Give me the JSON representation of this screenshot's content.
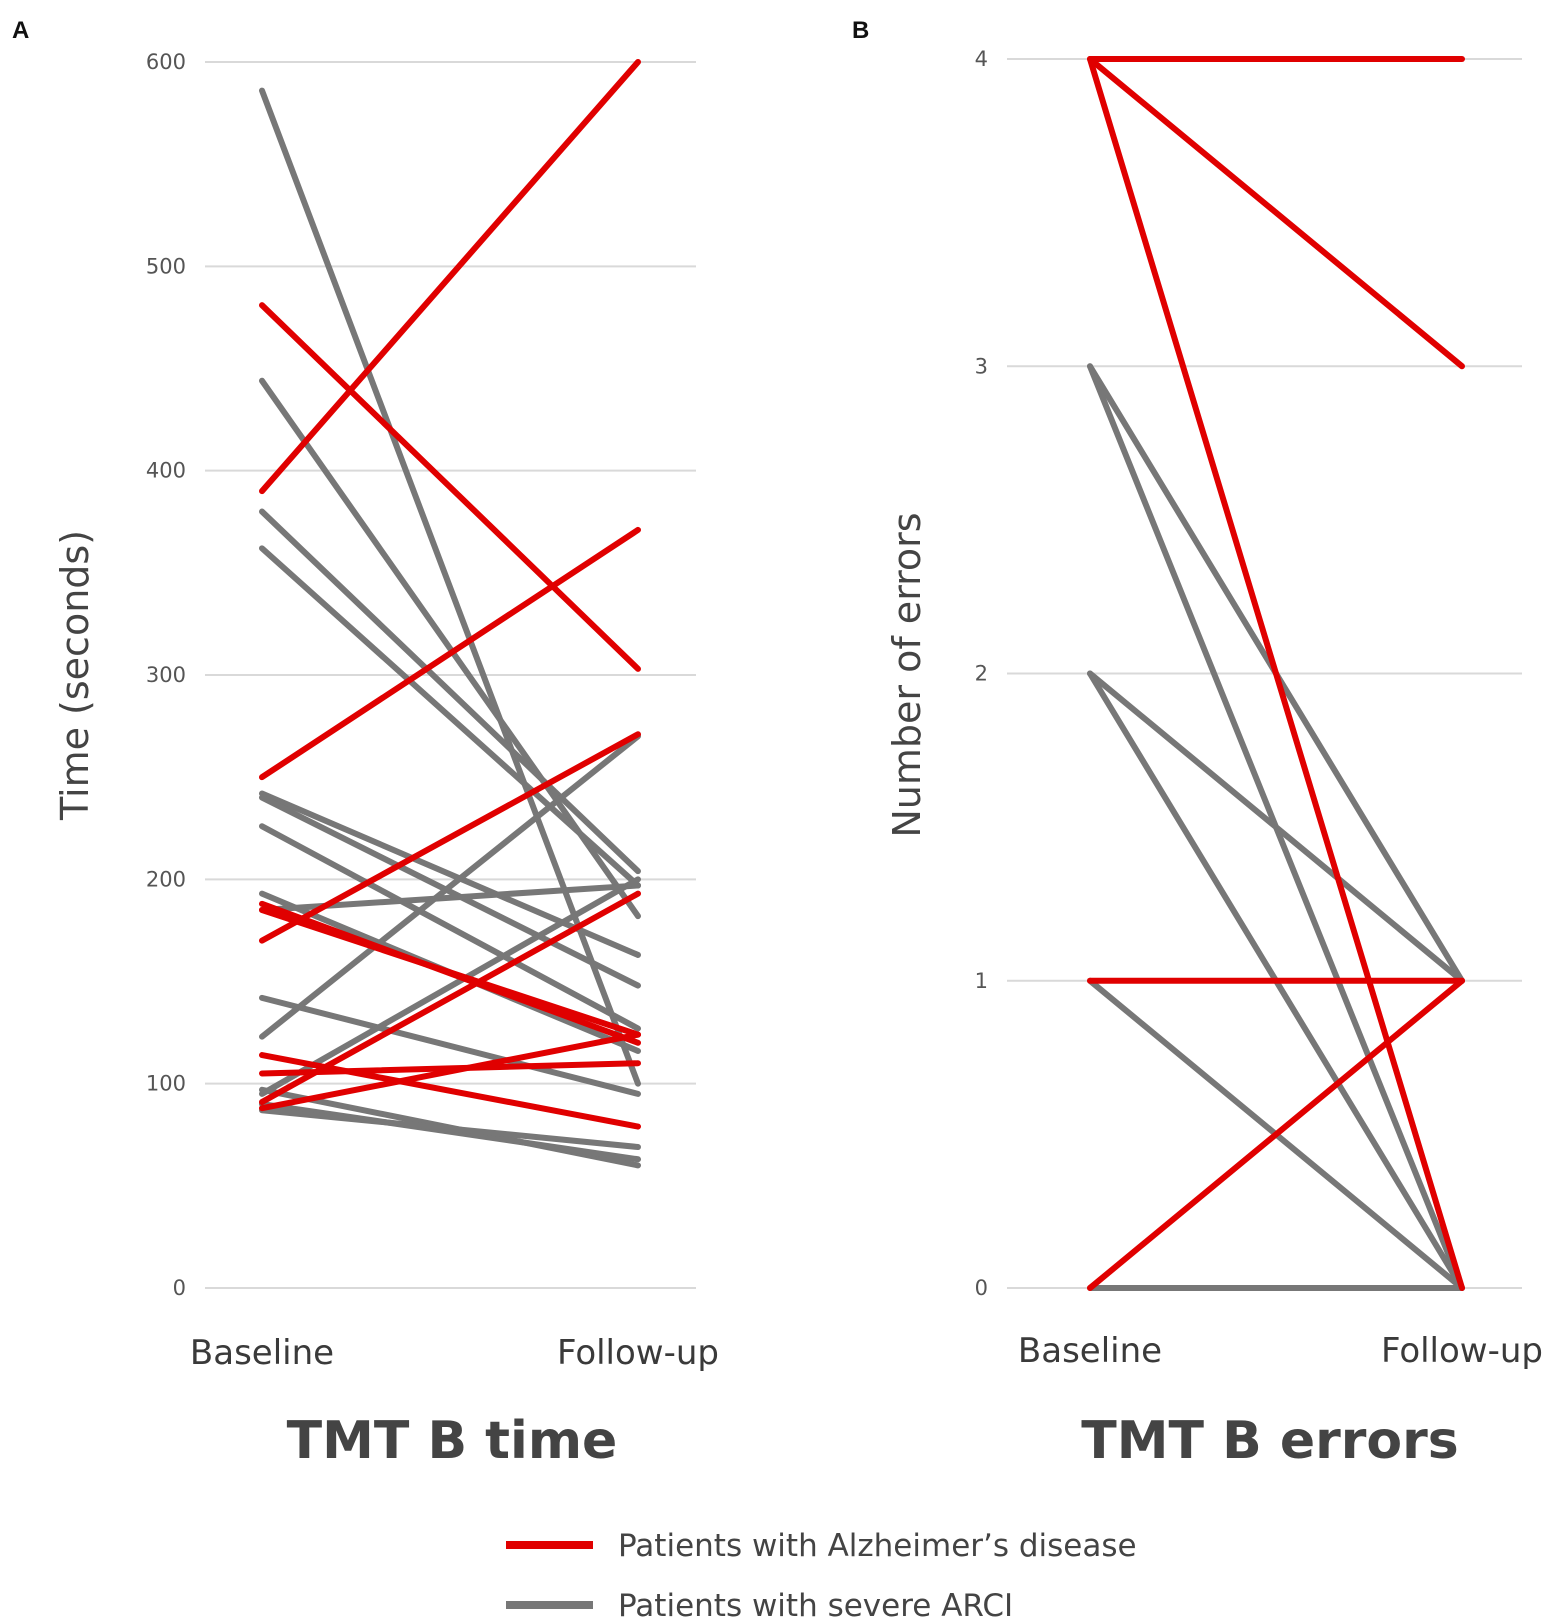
{
  "colors": {
    "alzheimers": "#e00000",
    "arci": "#777777",
    "grid": "#d9d9d9"
  },
  "legend": [
    {
      "label": "Patients with Alzheimer’s disease",
      "color": "#e00000"
    },
    {
      "label": "Patients with severe ARCI",
      "color": "#777777"
    }
  ],
  "chart_data": [
    {
      "panel": "A",
      "type": "line",
      "title": "TMT B time",
      "ylabel": "Time (seconds)",
      "categories": [
        "Baseline",
        "Follow-up"
      ],
      "ylim": [
        0,
        600
      ],
      "yticks": [
        "0",
        "100",
        "200",
        "300",
        "400",
        "500",
        "600"
      ],
      "grid": true,
      "series": [
        {
          "group": "arci",
          "values": [
            586,
            100
          ]
        },
        {
          "group": "arci",
          "values": [
            444,
            182
          ]
        },
        {
          "group": "arci",
          "values": [
            380,
            204
          ]
        },
        {
          "group": "arci",
          "values": [
            362,
            197
          ]
        },
        {
          "group": "arci",
          "values": [
            242,
            163
          ]
        },
        {
          "group": "arci",
          "values": [
            240,
            148
          ]
        },
        {
          "group": "arci",
          "values": [
            226,
            127
          ]
        },
        {
          "group": "arci",
          "values": [
            193,
            116
          ]
        },
        {
          "group": "arci",
          "values": [
            185,
            197
          ]
        },
        {
          "group": "arci",
          "values": [
            142,
            95
          ]
        },
        {
          "group": "arci",
          "values": [
            123,
            270
          ]
        },
        {
          "group": "arci",
          "values": [
            97,
            60
          ]
        },
        {
          "group": "arci",
          "values": [
            95,
            200
          ]
        },
        {
          "group": "arci",
          "values": [
            90,
            63
          ]
        },
        {
          "group": "arci",
          "values": [
            87,
            69
          ]
        },
        {
          "group": "alzheimers",
          "values": [
            481,
            303
          ]
        },
        {
          "group": "alzheimers",
          "values": [
            390,
            600
          ]
        },
        {
          "group": "alzheimers",
          "values": [
            250,
            371
          ]
        },
        {
          "group": "alzheimers",
          "values": [
            188,
            120
          ]
        },
        {
          "group": "alzheimers",
          "values": [
            185,
            124
          ]
        },
        {
          "group": "alzheimers",
          "values": [
            170,
            271
          ]
        },
        {
          "group": "alzheimers",
          "values": [
            114,
            79
          ]
        },
        {
          "group": "alzheimers",
          "values": [
            105,
            110
          ]
        },
        {
          "group": "alzheimers",
          "values": [
            91,
            193
          ]
        },
        {
          "group": "alzheimers",
          "values": [
            88,
            124
          ]
        }
      ]
    },
    {
      "panel": "B",
      "type": "line",
      "title": "TMT B errors",
      "ylabel": "Number of errors",
      "categories": [
        "Baseline",
        "Follow-up"
      ],
      "ylim": [
        0,
        4
      ],
      "yticks": [
        "0",
        "1",
        "2",
        "3",
        "4"
      ],
      "grid": true,
      "series": [
        {
          "group": "arci",
          "values": [
            3,
            1
          ]
        },
        {
          "group": "arci",
          "values": [
            3,
            0
          ]
        },
        {
          "group": "arci",
          "values": [
            2,
            1
          ]
        },
        {
          "group": "arci",
          "values": [
            2,
            0
          ]
        },
        {
          "group": "arci",
          "values": [
            1,
            0
          ]
        },
        {
          "group": "arci",
          "values": [
            0,
            0
          ]
        },
        {
          "group": "alzheimers",
          "values": [
            4,
            4
          ]
        },
        {
          "group": "alzheimers",
          "values": [
            4,
            3
          ]
        },
        {
          "group": "alzheimers",
          "values": [
            4,
            0
          ]
        },
        {
          "group": "alzheimers",
          "values": [
            1,
            1
          ]
        },
        {
          "group": "alzheimers",
          "values": [
            0,
            1
          ]
        }
      ]
    }
  ]
}
